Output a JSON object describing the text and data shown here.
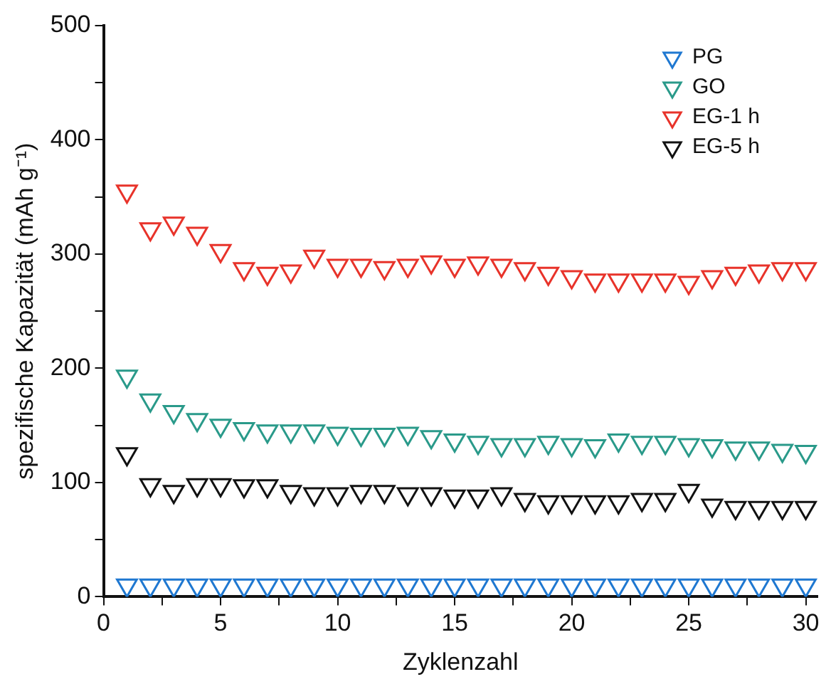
{
  "chart_data": {
    "type": "scatter",
    "xlabel": "Zyklenzahl",
    "ylabel": "spezifische Kapazität (mAh g⁻¹)",
    "x": [
      1,
      2,
      3,
      4,
      5,
      6,
      7,
      8,
      9,
      10,
      11,
      12,
      13,
      14,
      15,
      16,
      17,
      18,
      19,
      20,
      21,
      22,
      23,
      24,
      25,
      26,
      27,
      28,
      29,
      30
    ],
    "series": [
      {
        "name": "PG",
        "color": "#1f78d1",
        "values": [
          10,
          10,
          10,
          10,
          10,
          10,
          10,
          10,
          10,
          10,
          10,
          10,
          10,
          10,
          10,
          10,
          10,
          10,
          10,
          10,
          10,
          10,
          10,
          10,
          10,
          10,
          10,
          10,
          10,
          10
        ]
      },
      {
        "name": "GO",
        "color": "#2a9a8a",
        "values": [
          193,
          172,
          162,
          155,
          150,
          147,
          145,
          145,
          145,
          143,
          142,
          142,
          143,
          140,
          137,
          135,
          133,
          133,
          135,
          133,
          132,
          137,
          135,
          135,
          133,
          132,
          130,
          130,
          128,
          127
        ]
      },
      {
        "name": "EG-1 h",
        "color": "#e8332a",
        "values": [
          355,
          322,
          327,
          318,
          303,
          287,
          283,
          285,
          298,
          290,
          290,
          288,
          290,
          293,
          290,
          292,
          290,
          287,
          283,
          280,
          277,
          277,
          277,
          277,
          275,
          280,
          283,
          285,
          287,
          287
        ]
      },
      {
        "name": "EG-5 h",
        "color": "#111111",
        "values": [
          125,
          98,
          92,
          98,
          98,
          97,
          97,
          92,
          90,
          90,
          92,
          92,
          90,
          90,
          88,
          88,
          90,
          85,
          83,
          83,
          83,
          83,
          85,
          85,
          93,
          80,
          78,
          78,
          78,
          78
        ]
      }
    ],
    "xlim": [
      0,
      30.5
    ],
    "xticks": [
      0,
      {
        "value": 2.5,
        "label": null
      },
      5,
      {
        "value": 7.5,
        "label": null
      },
      10,
      {
        "value": 12.5,
        "label": null
      },
      15,
      {
        "value": 17.5,
        "label": null
      },
      20,
      {
        "value": 22.5,
        "label": null
      },
      25,
      {
        "value": 27.5,
        "label": null
      },
      30
    ],
    "ylim": [
      0,
      500
    ],
    "yticks": [
      0,
      {
        "value": 50,
        "label": null
      },
      100,
      {
        "value": 150,
        "label": null
      },
      200,
      {
        "value": 250,
        "label": null
      },
      300,
      {
        "value": 350,
        "label": null
      },
      400,
      {
        "value": 450,
        "label": null
      },
      500
    ],
    "grid": false,
    "legend": "top right",
    "marker": "triangle"
  }
}
